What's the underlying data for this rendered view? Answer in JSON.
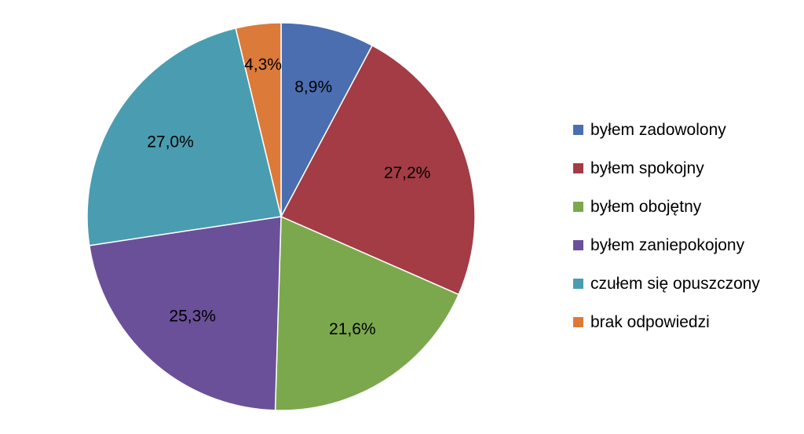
{
  "chart_data": {
    "type": "pie",
    "title": "",
    "labels": [
      "byłem zadowolony",
      "byłem spokojny",
      "byłem obojętny",
      "byłem zaniepokojony",
      "czułem się opuszczony",
      "brak odpowiedzi"
    ],
    "values": [
      8.9,
      27.2,
      21.6,
      25.3,
      27.0,
      4.3
    ],
    "value_labels": [
      "8,9%",
      "27,2%",
      "21,6%",
      "25,3%",
      "27,0%",
      "4,3%"
    ],
    "colors": [
      "#4A6EB0",
      "#A33C45",
      "#7BA84C",
      "#6A5099",
      "#4A9DB0",
      "#DC7A3A"
    ],
    "start": "12 o'clock",
    "direction": "clockwise",
    "legend_position": "right"
  }
}
